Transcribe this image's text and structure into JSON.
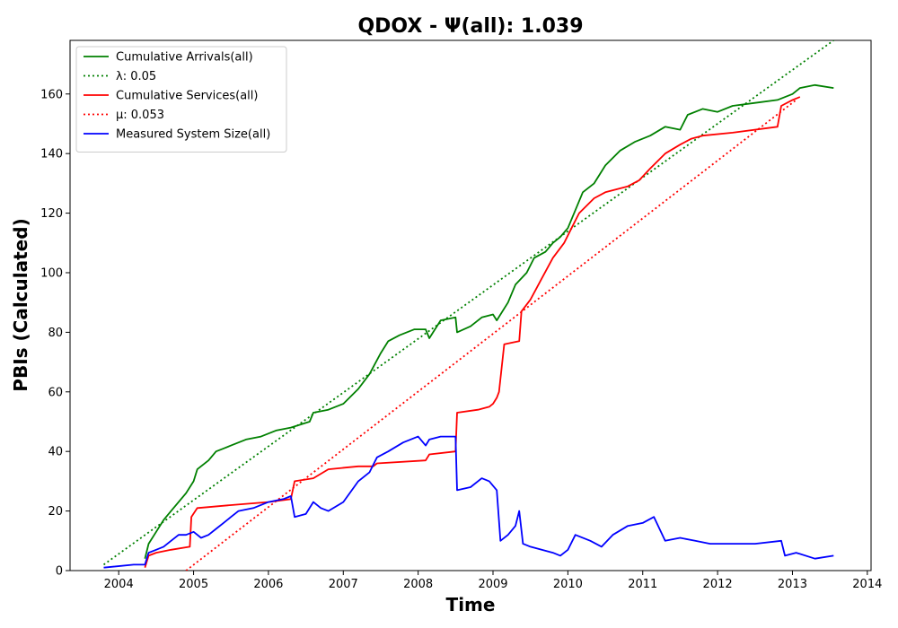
{
  "chart_data": {
    "type": "line",
    "title": "QDOX -  Ψ(all): 1.039",
    "xlabel": "Time",
    "ylabel": "PBIs (Calculated)",
    "xlim": [
      2003.35,
      2014.05
    ],
    "ylim": [
      0,
      178
    ],
    "x_ticks": [
      2004,
      2005,
      2006,
      2007,
      2008,
      2009,
      2010,
      2011,
      2012,
      2013,
      2014
    ],
    "x_tick_labels": [
      "2004",
      "2005",
      "2006",
      "2007",
      "2008",
      "2009",
      "2010",
      "2011",
      "2012",
      "2013",
      "2014"
    ],
    "y_ticks": [
      0,
      20,
      40,
      60,
      80,
      100,
      120,
      140,
      160
    ],
    "y_tick_labels": [
      "0",
      "20",
      "40",
      "60",
      "80",
      "100",
      "120",
      "140",
      "160"
    ],
    "grid": false,
    "legend_placement": "top-left",
    "series": [
      {
        "name": "Cumulative Arrivals(all)",
        "style": "solid",
        "color": "#008000",
        "x": [
          2004.35,
          2004.4,
          2004.5,
          2004.6,
          2004.7,
          2004.8,
          2004.9,
          2005.0,
          2005.05,
          2005.2,
          2005.3,
          2005.4,
          2005.5,
          2005.7,
          2005.9,
          2006.1,
          2006.3,
          2006.55,
          2006.6,
          2006.8,
          2007.0,
          2007.2,
          2007.35,
          2007.5,
          2007.6,
          2007.75,
          2007.95,
          2008.1,
          2008.15,
          2008.3,
          2008.5,
          2008.52,
          2008.7,
          2008.85,
          2009.0,
          2009.05,
          2009.2,
          2009.3,
          2009.45,
          2009.55,
          2009.7,
          2009.8,
          2009.9,
          2010.0,
          2010.1,
          2010.2,
          2010.35,
          2010.5,
          2010.7,
          2010.9,
          2011.1,
          2011.3,
          2011.5,
          2011.6,
          2011.8,
          2012.0,
          2012.2,
          2012.5,
          2012.8,
          2013.0,
          2013.1,
          2013.3,
          2013.55
        ],
        "y": [
          4,
          9,
          13,
          17,
          20,
          23,
          26,
          30,
          34,
          37,
          40,
          41,
          42,
          44,
          45,
          47,
          48,
          50,
          53,
          54,
          56,
          61,
          66,
          73,
          77,
          79,
          81,
          81,
          78,
          84,
          85,
          80,
          82,
          85,
          86,
          84,
          90,
          96,
          100,
          105,
          107,
          110,
          112,
          115,
          121,
          127,
          130,
          136,
          141,
          144,
          146,
          149,
          148,
          153,
          155,
          154,
          156,
          157,
          158,
          160,
          162,
          163,
          162
        ]
      },
      {
        "name": "λ: 0.05",
        "style": "dotted",
        "color": "#008000",
        "x": [
          2003.8,
          2013.55
        ],
        "y": [
          2,
          178
        ]
      },
      {
        "name": "Cumulative Services(all)",
        "style": "solid",
        "color": "#ff0000",
        "x": [
          2004.35,
          2004.4,
          2004.5,
          2004.7,
          2004.95,
          2004.97,
          2005.05,
          2005.5,
          2006.0,
          2006.3,
          2006.35,
          2006.6,
          2006.8,
          2007.2,
          2007.4,
          2007.45,
          2008.1,
          2008.15,
          2008.5,
          2008.52,
          2008.8,
          2008.95,
          2009.0,
          2009.05,
          2009.08,
          2009.15,
          2009.35,
          2009.38,
          2009.5,
          2009.65,
          2009.8,
          2009.95,
          2010.05,
          2010.15,
          2010.35,
          2010.5,
          2010.8,
          2010.95,
          2011.1,
          2011.3,
          2011.5,
          2011.65,
          2011.8,
          2012.2,
          2012.8,
          2012.85,
          2013.0,
          2013.1
        ],
        "y": [
          1,
          5,
          6,
          7,
          8,
          18,
          21,
          22,
          23,
          24,
          30,
          31,
          34,
          35,
          35,
          36,
          37,
          39,
          40,
          53,
          54,
          55,
          56,
          58,
          60,
          76,
          77,
          87,
          91,
          98,
          105,
          110,
          115,
          120,
          125,
          127,
          129,
          131,
          135,
          140,
          143,
          145,
          146,
          147,
          149,
          156,
          158,
          159
        ]
      },
      {
        "name": "μ: 0.053",
        "style": "dotted",
        "color": "#ff0000",
        "x": [
          2004.9,
          2013.05
        ],
        "y": [
          0,
          158
        ]
      },
      {
        "name": "Measured System Size(all)",
        "style": "solid",
        "color": "#0000ff",
        "x": [
          2003.8,
          2004.2,
          2004.35,
          2004.4,
          2004.5,
          2004.6,
          2004.7,
          2004.8,
          2004.9,
          2005.0,
          2005.1,
          2005.2,
          2005.3,
          2005.4,
          2005.5,
          2005.6,
          2005.8,
          2006.0,
          2006.2,
          2006.3,
          2006.35,
          2006.5,
          2006.6,
          2006.7,
          2006.8,
          2007.0,
          2007.2,
          2007.35,
          2007.45,
          2007.6,
          2007.8,
          2008.0,
          2008.1,
          2008.15,
          2008.3,
          2008.5,
          2008.52,
          2008.7,
          2008.85,
          2008.95,
          2009.05,
          2009.1,
          2009.2,
          2009.3,
          2009.35,
          2009.4,
          2009.5,
          2009.65,
          2009.8,
          2009.9,
          2010.0,
          2010.1,
          2010.3,
          2010.45,
          2010.6,
          2010.8,
          2011.0,
          2011.15,
          2011.3,
          2011.5,
          2011.7,
          2011.9,
          2012.2,
          2012.5,
          2012.85,
          2012.9,
          2013.05,
          2013.3,
          2013.55
        ],
        "y": [
          1,
          2,
          2,
          6,
          7,
          8,
          10,
          12,
          12,
          13,
          11,
          12,
          14,
          16,
          18,
          20,
          21,
          23,
          24,
          25,
          18,
          19,
          23,
          21,
          20,
          23,
          30,
          33,
          38,
          40,
          43,
          45,
          42,
          44,
          45,
          45,
          27,
          28,
          31,
          30,
          27,
          10,
          12,
          15,
          20,
          9,
          8,
          7,
          6,
          5,
          7,
          12,
          10,
          8,
          12,
          15,
          16,
          18,
          10,
          11,
          10,
          9,
          9,
          9,
          10,
          5,
          6,
          4,
          5
        ]
      }
    ],
    "legend": [
      {
        "label": "Cumulative Arrivals(all)",
        "color": "#008000",
        "style": "solid"
      },
      {
        "label": "λ: 0.05",
        "color": "#008000",
        "style": "dotted"
      },
      {
        "label": "Cumulative Services(all)",
        "color": "#ff0000",
        "style": "solid"
      },
      {
        "label": "μ: 0.053",
        "color": "#ff0000",
        "style": "dotted"
      },
      {
        "label": "Measured System Size(all)",
        "color": "#0000ff",
        "style": "solid"
      }
    ]
  }
}
